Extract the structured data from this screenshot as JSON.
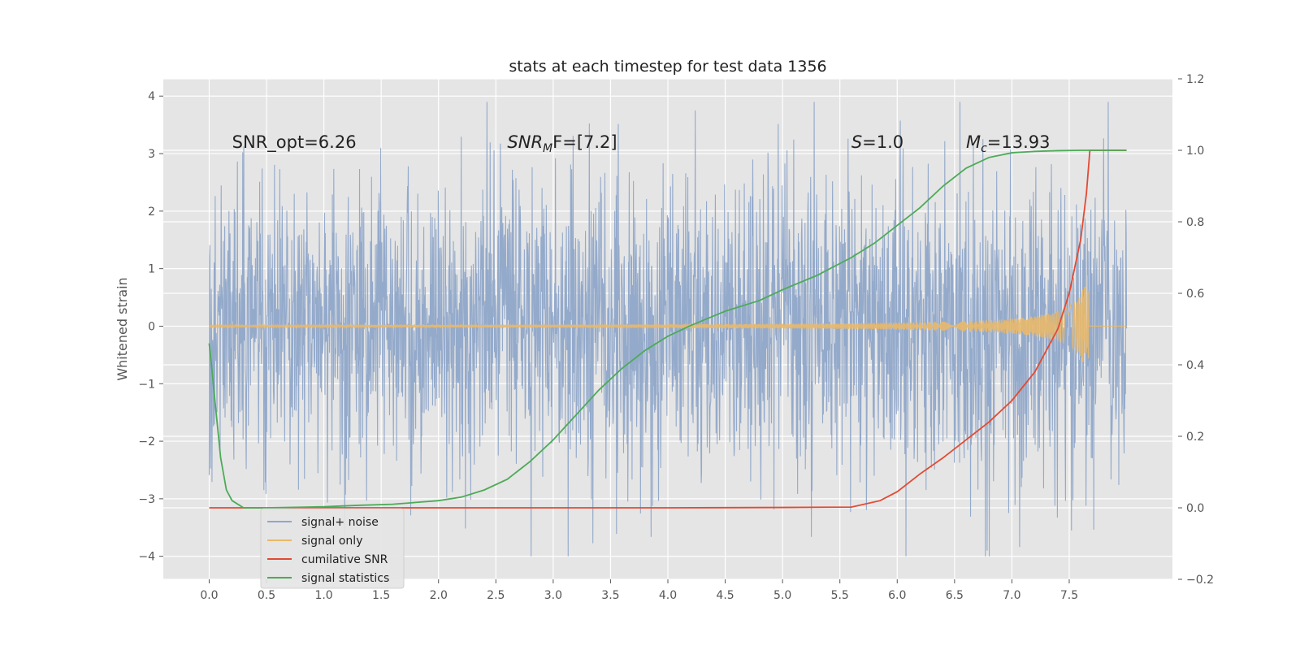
{
  "chart_data": {
    "type": "line",
    "title": "stats at each timestep for test data 1356",
    "ylabel": "Whitened strain",
    "y2label": "",
    "xlim": [
      -0.4,
      8.4
    ],
    "ylim": [
      -4.4,
      4.3
    ],
    "y2lim": [
      -0.2,
      1.2
    ],
    "xticks": [
      0.0,
      0.5,
      1.0,
      1.5,
      2.0,
      2.5,
      3.0,
      3.5,
      4.0,
      4.5,
      5.0,
      5.5,
      6.0,
      6.5,
      7.0,
      7.5
    ],
    "xtick_labels": [
      "0.0",
      "0.5",
      "1.0",
      "1.5",
      "2.0",
      "2.5",
      "3.0",
      "3.5",
      "4.0",
      "4.5",
      "5.0",
      "5.5",
      "6.0",
      "6.5",
      "7.0",
      "7.5"
    ],
    "yticks": [
      -4,
      -3,
      -2,
      -1,
      0,
      1,
      2,
      3,
      4
    ],
    "ytick_labels": [
      "−4",
      "−3",
      "−2",
      "−1",
      "0",
      "1",
      "2",
      "3",
      "4"
    ],
    "y2ticks": [
      -0.2,
      0.0,
      0.2,
      0.4,
      0.6,
      0.8,
      1.0,
      1.2
    ],
    "y2tick_labels": [
      "−0.2",
      "0.0",
      "0.2",
      "0.4",
      "0.6",
      "0.8",
      "1.0",
      "1.2"
    ],
    "grid": true,
    "legend_position": "lower-left",
    "colors": {
      "background": "#e5e5e5",
      "grid": "#ffffff",
      "signal_noise": "#8fa7c9",
      "signal_only": "#e8b86a",
      "cumulative_snr": "#e24a33",
      "signal_statistics": "#4daa57"
    },
    "annotations": [
      {
        "text": "SNR_opt=6.26",
        "x": 0.2,
        "y": 3.1
      },
      {
        "text_main": "SNR",
        "text_sub": "M",
        "text_tail": "F=[7.2]",
        "x": 2.6,
        "y": 3.1
      },
      {
        "text_main": "S",
        "text_tail": "=1.0",
        "x": 5.6,
        "y": 3.1
      },
      {
        "text_main": "M",
        "text_sub": "c",
        "text_tail": "=13.93",
        "x": 6.6,
        "y": 3.1
      }
    ],
    "series": [
      {
        "name": "signal+ noise",
        "axis": "left",
        "kind": "noise",
        "x_range": [
          0.0,
          8.0
        ],
        "envelope": 1.8,
        "y_min": -4.0,
        "y_max": 3.9
      },
      {
        "name": "signal only",
        "axis": "left",
        "kind": "chirp",
        "x_range": [
          0.0,
          8.0
        ],
        "peak_x": 7.67,
        "peak_amplitude": 1.0
      },
      {
        "name": "cumilative SNR",
        "axis": "right",
        "x": [
          0.0,
          1.0,
          2.0,
          3.0,
          4.0,
          5.0,
          5.6,
          5.85,
          6.0,
          6.2,
          6.4,
          6.6,
          6.8,
          7.0,
          7.2,
          7.3,
          7.4,
          7.5,
          7.6,
          7.65,
          7.68,
          7.72,
          8.0
        ],
        "y": [
          0.0,
          0.0,
          0.0,
          0.0,
          0.0,
          0.001,
          0.002,
          0.02,
          0.045,
          0.095,
          0.14,
          0.19,
          0.24,
          0.3,
          0.38,
          0.44,
          0.5,
          0.6,
          0.75,
          0.88,
          1.0,
          1.0,
          1.0
        ]
      },
      {
        "name": "signal statistics",
        "axis": "right",
        "x": [
          0.0,
          0.02,
          0.05,
          0.1,
          0.15,
          0.2,
          0.3,
          0.5,
          1.0,
          1.3,
          1.6,
          1.8,
          2.0,
          2.2,
          2.4,
          2.6,
          2.8,
          3.0,
          3.2,
          3.4,
          3.6,
          3.8,
          4.0,
          4.2,
          4.5,
          4.8,
          5.0,
          5.3,
          5.6,
          5.8,
          6.0,
          6.2,
          6.4,
          6.6,
          6.8,
          7.0,
          7.2,
          7.4,
          7.6,
          7.8,
          8.0
        ],
        "y": [
          0.46,
          0.4,
          0.3,
          0.14,
          0.05,
          0.02,
          0.0,
          0.0,
          0.003,
          0.007,
          0.01,
          0.015,
          0.02,
          0.03,
          0.05,
          0.08,
          0.13,
          0.19,
          0.26,
          0.33,
          0.39,
          0.44,
          0.48,
          0.51,
          0.55,
          0.58,
          0.61,
          0.65,
          0.7,
          0.74,
          0.79,
          0.84,
          0.9,
          0.95,
          0.98,
          0.993,
          0.997,
          0.999,
          1.0,
          1.0,
          1.0
        ]
      }
    ]
  }
}
